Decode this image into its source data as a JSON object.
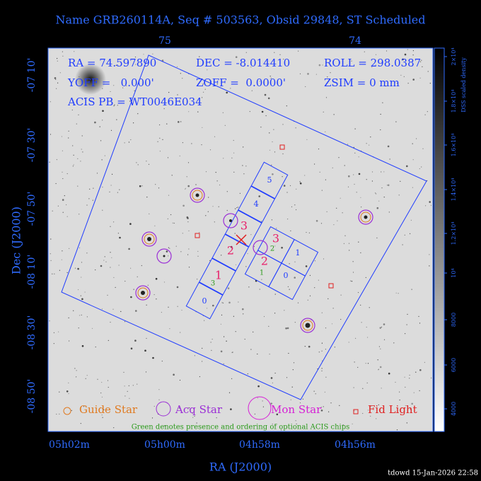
{
  "title": "Name GRB260114A, Seq # 503563, Obsid 29848, ST Scheduled",
  "info": {
    "ra": "RA = 74.597890",
    "dec": "DEC = -8.014410",
    "roll": "ROLL = 298.0387",
    "yoff": "YOFF =   0.000'",
    "zoff": "ZOFF =  0.0000'",
    "zsim": "ZSIM = 0 mm",
    "acis_pb": "ACIS PB = WT0046E034"
  },
  "top_axis_labels": [
    "75",
    "74"
  ],
  "left_axis_labels": [
    "-07 10'",
    "-07 30'",
    "-07 50'",
    "-08 10'",
    "-08 30'",
    "-08 50'"
  ],
  "y_axis_label": "Dec (J2000)",
  "bottom_axis_labels": [
    "05h02m",
    "05h00m",
    "04h58m",
    "04h56m"
  ],
  "x_axis_label": "RA (J2000)",
  "chip_labels": {
    "acis_s": [
      "5",
      "4",
      "0"
    ],
    "acis_i": [
      "1",
      "0"
    ],
    "required": [
      "3",
      "2",
      "1",
      "3",
      "2"
    ],
    "optional": [
      "3",
      "2",
      "1"
    ]
  },
  "legend": [
    "Guide Star",
    "Acq Star",
    "Mon Star",
    "Fid Light"
  ],
  "footnote": "Green denotes presence and ordering of optional ACIS chips",
  "colorbar": {
    "label": "DSS scaled density",
    "tick_labels": [
      "4000",
      "6000",
      "8000",
      "10⁴",
      "1.2×10⁴",
      "1.4×10⁴",
      "1.6×10⁴",
      "1.8×10⁴",
      "2×10⁴"
    ]
  },
  "stamp": "tdowd 15-Jan-2026 22:58"
}
